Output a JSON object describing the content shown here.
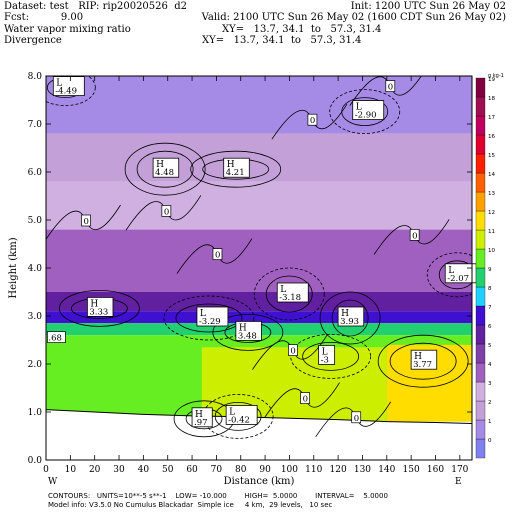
{
  "header": {
    "line1_left": "Dataset: test   RIP: rip20020526  d2",
    "line1_right": "Init: 1200 UTC Sun 26 May 02",
    "line2_left": "Fcst:          9.00",
    "line2_right": "Valid: 2100 UTC Sun 26 May 02 (1600 CDT Sun 26 May 02)",
    "line3_left": "Water vapor mixing ratio",
    "line3_right": "XY=   13.7, 34.1  to   57.3, 31.4",
    "line4_left": "Divergence",
    "line4_right": "XY=   13.7, 34.1  to   57.3, 31.4"
  },
  "footer": {
    "line1": "CONTOURS:   UNITS=10**-5 s**-1    LOW= -10.000        HIGH=  5.0000        INTERVAL=    5.0000",
    "line2": "Model info: V3.5.0 No Cumulus Blackadar  Simple ice     4 km,  29 levels,   10 sec"
  },
  "chart_data": {
    "type": "heatmap",
    "xlabel": "Distance (km)",
    "ylabel": "Height (km)",
    "xlim": [
      0,
      175
    ],
    "ylim": [
      0,
      8
    ],
    "xticks": [
      0,
      10,
      20,
      30,
      40,
      50,
      60,
      70,
      80,
      90,
      100,
      110,
      120,
      130,
      140,
      150,
      160,
      170
    ],
    "yticks": [
      "0.0",
      "1.0",
      "2.0",
      "3.0",
      "4.0",
      "5.0",
      "6.0",
      "7.0",
      "8.0"
    ],
    "endpoints": {
      "left": "W",
      "right": "E"
    },
    "colorbar": {
      "unit_label": "g kg-1",
      "levels": [
        -1,
        0,
        1,
        2,
        3,
        4,
        5,
        6,
        7,
        8,
        9,
        10,
        11,
        12,
        13,
        14,
        15,
        16,
        17,
        18,
        19
      ],
      "label_text": [
        "0",
        "1",
        "2",
        "3",
        "4",
        "5",
        "6",
        "7",
        "8",
        "9",
        "10",
        "11",
        "12",
        "13",
        "14",
        "15",
        "16",
        "17",
        "18",
        "19"
      ],
      "colors": [
        "#8080f0",
        "#a58ae6",
        "#c3a0d8",
        "#d0b0e0",
        "#a060c0",
        "#8040a8",
        "#6020a0",
        "#4010d0",
        "#20d0ff",
        "#22d070",
        "#66ee22",
        "#ccee00",
        "#ffdd00",
        "#ffa000",
        "#ff6000",
        "#ff2000",
        "#e00030",
        "#c00060",
        "#a01050",
        "#800040"
      ]
    },
    "moisture_layers": [
      {
        "value": 0.5,
        "from_km": 6.8,
        "to_km": 8.0
      },
      {
        "value": 1.5,
        "from_km": 5.8,
        "to_km": 6.8
      },
      {
        "value": 2.5,
        "from_km": 4.8,
        "to_km": 5.8
      },
      {
        "value": 3.5,
        "from_km": 3.5,
        "to_km": 4.8
      },
      {
        "value": 5.0,
        "from_km": 3.1,
        "to_km": 3.5
      },
      {
        "value": 6.5,
        "from_km": 2.85,
        "to_km": 3.1
      },
      {
        "value": 8.0,
        "from_km": 2.6,
        "to_km": 2.85
      },
      {
        "value": 9.5,
        "from_km": 0.8,
        "to_km": 2.6
      },
      {
        "value": 10.5,
        "from_km": 0.8,
        "to_km": 2.35,
        "x_from": 64,
        "x_to": 140
      },
      {
        "value": 11.5,
        "from_km": 0.8,
        "to_km": 2.4,
        "x_from": 140,
        "x_to": 175
      }
    ],
    "terrain_km": [
      [
        0,
        1.05
      ],
      [
        20,
        1.0
      ],
      [
        40,
        0.95
      ],
      [
        60,
        0.92
      ],
      [
        80,
        0.9
      ],
      [
        100,
        0.87
      ],
      [
        120,
        0.84
      ],
      [
        140,
        0.8
      ],
      [
        160,
        0.78
      ],
      [
        175,
        0.76
      ]
    ],
    "extrema_labels": [
      {
        "kind": "L",
        "value": "-4.49",
        "x": 3,
        "y": 7.8
      },
      {
        "kind": "L",
        "value": "-2.90",
        "x": 126,
        "y": 7.3
      },
      {
        "kind": "H",
        "value": "4.48",
        "x": 44,
        "y": 6.1
      },
      {
        "kind": "H",
        "value": "4.21",
        "x": 73,
        "y": 6.1
      },
      {
        "kind": "L",
        "value": "-2.07",
        "x": 164,
        "y": 3.9
      },
      {
        "kind": "L",
        "value": "-3.18",
        "x": 95,
        "y": 3.5
      },
      {
        "kind": "H",
        "value": "3.33",
        "x": 17,
        "y": 3.2
      },
      {
        "kind": "L",
        "value": "-3.29",
        "x": 62,
        "y": 3.0
      },
      {
        "kind": "H",
        "value": "3.93",
        "x": 120,
        "y": 3.0
      },
      {
        "kind": "H",
        "value": "3.48",
        "x": 78,
        "y": 2.7
      },
      {
        "kind": "L",
        "value": "-3",
        "x": 112,
        "y": 2.2
      },
      {
        "kind": "H",
        "value": "3.77",
        "x": 150,
        "y": 2.1
      },
      {
        "kind": "H",
        "value": ".97",
        "x": 60,
        "y": 0.9
      },
      {
        "kind": "L",
        "value": "-0.42",
        "x": 74,
        "y": 0.95
      }
    ],
    "contour_zero_labels": [
      {
        "text": "0",
        "x": 15,
        "y": 5.0
      },
      {
        "text": "0",
        "x": 48,
        "y": 5.2
      },
      {
        "text": "0",
        "x": 108,
        "y": 7.1
      },
      {
        "text": "0",
        "x": 140,
        "y": 7.8
      },
      {
        "text": "0",
        "x": 69,
        "y": 4.3
      },
      {
        "text": "0",
        "x": 150,
        "y": 4.7
      },
      {
        "text": "0",
        "x": 100,
        "y": 2.3
      },
      {
        "text": "0",
        "x": 105,
        "y": 1.3
      },
      {
        "text": "0",
        "x": 126,
        "y": 0.9
      }
    ],
    "edge_label": {
      "text": ".68",
      "x": 1,
      "y": 2.55
    }
  }
}
